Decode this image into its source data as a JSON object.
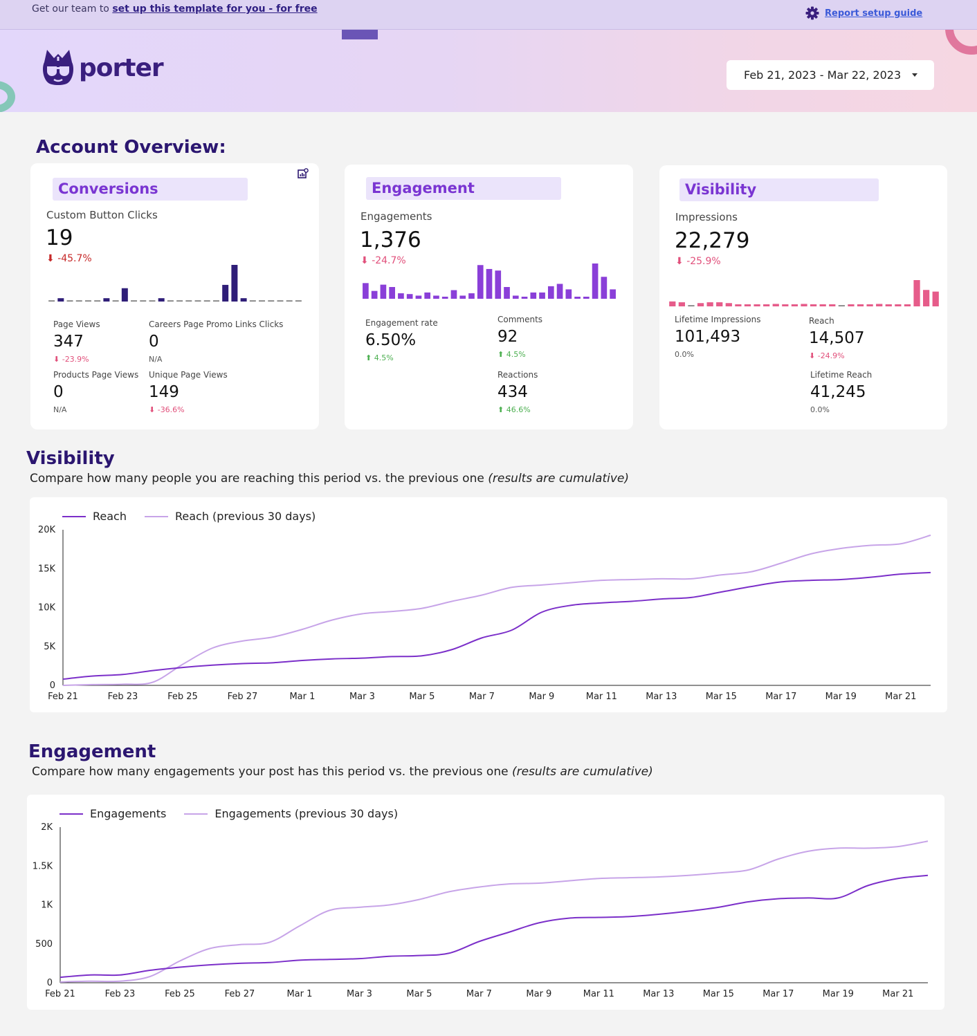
{
  "topbar": {
    "prefix": "Get our team to ",
    "link": "set up this template for you - for free",
    "setup_guide": "Report setup guide"
  },
  "header": {
    "logo_text": "porter",
    "date_range": "Feb 21, 2023 - Mar 22, 2023"
  },
  "overview_title": "Account Overview:",
  "cards": {
    "conversions": {
      "title": "Conversions",
      "kpi_label": "Custom Button Clicks",
      "kpi_value": "19",
      "kpi_delta": "-45.7%",
      "bars": [
        0,
        1,
        0,
        0,
        0,
        0,
        1,
        0,
        4,
        0,
        0,
        0,
        1,
        0,
        0,
        0,
        0,
        0,
        0,
        5,
        11,
        1,
        0,
        0,
        0,
        0,
        0,
        0
      ],
      "bar_color": "#2f1e78",
      "metrics": [
        {
          "label": "Page Views",
          "value": "347",
          "delta": "-23.9%",
          "dir": "down"
        },
        {
          "label": "Careers Page Promo Links Clicks",
          "value": "0",
          "delta": "N/A",
          "dir": "none"
        },
        {
          "label": "Products Page Views",
          "value": "0",
          "delta": "N/A",
          "dir": "none"
        },
        {
          "label": "Unique Page Views",
          "value": "149",
          "delta": "-36.6%",
          "dir": "down"
        }
      ]
    },
    "engagement": {
      "title": "Engagement",
      "kpi_label": "Engagements",
      "kpi_value": "1,376",
      "kpi_delta": "-24.7%",
      "bars": [
        20,
        10,
        18,
        15,
        7,
        6,
        4,
        8,
        4,
        2,
        11,
        4,
        7,
        43,
        38,
        36,
        15,
        4,
        2,
        8,
        8,
        16,
        19,
        12,
        2,
        2,
        45,
        28,
        12
      ],
      "bar_color": "#8a3fd8",
      "metrics": [
        {
          "label": "Engagement rate",
          "value": "6.50%",
          "delta": "4.5%",
          "dir": "up"
        },
        {
          "label": "Comments",
          "value": "92",
          "delta": "4.5%",
          "dir": "up"
        },
        {
          "label": "Reactions",
          "value": "434",
          "delta": "46.6%",
          "dir": "up"
        }
      ]
    },
    "visibility": {
      "title": "Visibility",
      "kpi_label": "Impressions",
      "kpi_value": "22,279",
      "kpi_delta": "-25.9%",
      "bars": [
        6,
        5,
        0,
        4,
        5,
        5,
        4,
        2,
        2,
        2,
        2,
        3,
        2,
        2,
        3,
        2,
        2,
        2,
        0,
        2,
        2,
        2,
        3,
        2,
        2,
        2,
        32,
        20,
        18
      ],
      "bar_color": "#e65c8a",
      "metrics": [
        {
          "label": "Lifetime Impressions",
          "value": "101,493",
          "delta": "0.0%",
          "dir": "none"
        },
        {
          "label": "Reach",
          "value": "14,507",
          "delta": "-24.9%",
          "dir": "down"
        },
        {
          "label": "Lifetime Reach",
          "value": "41,245",
          "delta": "0.0%",
          "dir": "none"
        }
      ]
    }
  },
  "visibility_section": {
    "title": "Visibility",
    "subtitle": "Compare how many people you are reaching this period vs. the previous one ",
    "subtitle_em": "(results are cumulative)"
  },
  "engagement_section": {
    "title": "Engagement",
    "subtitle": "Compare how many engagements your post has this period vs. the previous one ",
    "subtitle_em": "(results are cumulative)"
  },
  "chart_data": [
    {
      "type": "line",
      "x": [
        "Feb 21",
        "Feb 22",
        "Feb 23",
        "Feb 24",
        "Feb 25",
        "Feb 26",
        "Feb 27",
        "Feb 28",
        "Mar 1",
        "Mar 2",
        "Mar 3",
        "Mar 4",
        "Mar 5",
        "Mar 6",
        "Mar 7",
        "Mar 8",
        "Mar 9",
        "Mar 10",
        "Mar 11",
        "Mar 12",
        "Mar 13",
        "Mar 14",
        "Mar 15",
        "Mar 16",
        "Mar 17",
        "Mar 18",
        "Mar 19",
        "Mar 20",
        "Mar 21",
        "Mar 22"
      ],
      "x_tick_labels": [
        "Feb 21",
        "Feb 23",
        "Feb 25",
        "Feb 27",
        "Mar 1",
        "Mar 3",
        "Mar 5",
        "Mar 7",
        "Mar 9",
        "Mar 11",
        "Mar 13",
        "Mar 15",
        "Mar 17",
        "Mar 19",
        "Mar 21"
      ],
      "y_tick_labels": [
        "0",
        "5K",
        "10K",
        "15K",
        "20K"
      ],
      "ylim": [
        0,
        20000
      ],
      "series": [
        {
          "name": "Reach",
          "color": "#7b2fc9",
          "values": [
            800,
            1200,
            1400,
            1900,
            2300,
            2600,
            2800,
            2900,
            3200,
            3400,
            3500,
            3700,
            3800,
            4600,
            6100,
            7100,
            9400,
            10300,
            10600,
            10800,
            11100,
            11300,
            12000,
            12700,
            13300,
            13500,
            13600,
            13900,
            14300,
            14500
          ]
        },
        {
          "name": "Reach (previous 30 days)",
          "color": "#c7a4e8",
          "values": [
            0,
            100,
            150,
            400,
            2700,
            4800,
            5700,
            6200,
            7200,
            8400,
            9200,
            9500,
            9900,
            10800,
            11600,
            12600,
            12900,
            13200,
            13500,
            13600,
            13700,
            13700,
            14200,
            14600,
            15700,
            16900,
            17600,
            18000,
            18200,
            19300
          ]
        }
      ]
    },
    {
      "type": "line",
      "x": [
        "Feb 21",
        "Feb 22",
        "Feb 23",
        "Feb 24",
        "Feb 25",
        "Feb 26",
        "Feb 27",
        "Feb 28",
        "Mar 1",
        "Mar 2",
        "Mar 3",
        "Mar 4",
        "Mar 5",
        "Mar 6",
        "Mar 7",
        "Mar 8",
        "Mar 9",
        "Mar 10",
        "Mar 11",
        "Mar 12",
        "Mar 13",
        "Mar 14",
        "Mar 15",
        "Mar 16",
        "Mar 17",
        "Mar 18",
        "Mar 19",
        "Mar 20",
        "Mar 21",
        "Mar 22"
      ],
      "x_tick_labels": [
        "Feb 21",
        "Feb 23",
        "Feb 25",
        "Feb 27",
        "Mar 1",
        "Mar 3",
        "Mar 5",
        "Mar 7",
        "Mar 9",
        "Mar 11",
        "Mar 13",
        "Mar 15",
        "Mar 17",
        "Mar 19",
        "Mar 21"
      ],
      "y_tick_labels": [
        "0",
        "500",
        "1K",
        "1.5K",
        "2K"
      ],
      "ylim": [
        0,
        2000
      ],
      "series": [
        {
          "name": "Engagements",
          "color": "#7b2fc9",
          "values": [
            70,
            100,
            100,
            160,
            200,
            230,
            250,
            260,
            290,
            300,
            310,
            340,
            350,
            380,
            530,
            650,
            770,
            830,
            840,
            850,
            880,
            920,
            970,
            1040,
            1080,
            1090,
            1090,
            1250,
            1340,
            1380
          ]
        },
        {
          "name": "Engagements (previous 30 days)",
          "color": "#c7a4e8",
          "values": [
            10,
            20,
            20,
            80,
            280,
            440,
            490,
            520,
            730,
            930,
            970,
            1000,
            1070,
            1170,
            1230,
            1270,
            1280,
            1310,
            1340,
            1350,
            1360,
            1380,
            1410,
            1450,
            1590,
            1690,
            1730,
            1730,
            1750,
            1820
          ]
        }
      ]
    }
  ]
}
